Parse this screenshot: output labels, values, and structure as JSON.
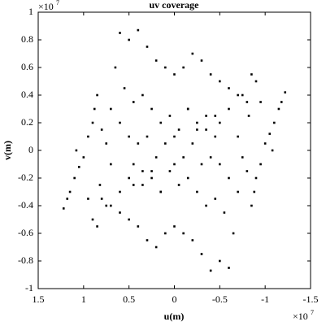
{
  "chart_data": {
    "type": "scatter",
    "title": "uv coverage",
    "xlabel": "u(m)",
    "ylabel": "v(m)",
    "x_scale_base": "×10",
    "x_scale_exponent": "7",
    "y_scale_base": "×10",
    "y_scale_exponent": "7",
    "color": "#000000",
    "xlim": [
      1.5,
      -1.5
    ],
    "xticks": [
      1.5,
      1,
      0.5,
      0,
      -0.5,
      -1,
      -1.5
    ],
    "ylim": [
      -1,
      1
    ],
    "yticks": [
      -1,
      -0.8,
      -0.6,
      -0.4,
      -0.2,
      0,
      0.2,
      0.4,
      0.6,
      0.8,
      1
    ],
    "x": [
      1.22,
      1.18,
      1.15,
      1.1,
      1.05,
      1.0,
      1.08,
      0.95,
      0.9,
      0.88,
      0.85,
      0.8,
      0.75,
      0.7,
      0.82,
      0.9,
      0.85,
      0.6,
      0.5,
      0.4,
      0.3,
      0.2,
      0.1,
      0.0,
      -0.1,
      -0.2,
      -0.3,
      -0.4,
      -0.5,
      -0.6,
      -0.7,
      -0.8,
      0.55,
      0.45,
      0.35,
      0.25,
      0.15,
      0.05,
      -0.05,
      -0.15,
      -0.25,
      -0.35,
      -0.45,
      0.6,
      0.5,
      0.4,
      0.3,
      0.2,
      0.1,
      0.0,
      0.65,
      0.7,
      0.95,
      0.75,
      0.6,
      0.5,
      0.35,
      0.25,
      0.45,
      0.15,
      -1.22,
      -1.18,
      -1.15,
      -1.1,
      -1.05,
      -1.0,
      -1.08,
      -0.95,
      -0.9,
      -0.88,
      -0.85,
      -0.8,
      -0.75,
      -0.7,
      -0.82,
      -0.9,
      -0.85,
      -0.6,
      -0.5,
      -0.4,
      -0.3,
      -0.2,
      -0.1,
      0,
      0.1,
      0.2,
      0.3,
      0.4,
      0.5,
      0.6,
      0.7,
      0.8,
      -0.55,
      -0.45,
      -0.35,
      -0.25,
      -0.15,
      -0.05,
      0.05,
      0.15,
      0.25,
      0.35,
      0.45,
      -0.6,
      -0.5,
      -0.4,
      -0.3,
      -0.2,
      -0.1,
      0,
      -0.65,
      -0.7,
      -0.95,
      -0.75,
      -0.6,
      -0.5,
      -0.35,
      -0.25,
      -0.45,
      -0.15
    ],
    "values": [
      -0.42,
      -0.35,
      -0.3,
      -0.2,
      -0.12,
      -0.05,
      0.0,
      0.1,
      0.2,
      0.3,
      0.4,
      0.15,
      0.05,
      -0.1,
      -0.25,
      -0.5,
      -0.55,
      0.85,
      0.8,
      0.87,
      0.75,
      0.65,
      0.6,
      0.55,
      0.6,
      0.7,
      0.65,
      0.55,
      0.5,
      0.45,
      0.4,
      0.35,
      0.45,
      0.35,
      0.4,
      0.3,
      0.2,
      0.25,
      0.15,
      0.3,
      0.2,
      0.15,
      0.25,
      0.2,
      0.1,
      0.05,
      0.1,
      -0.05,
      0.05,
      -0.1,
      0.6,
      0.3,
      -0.35,
      -0.4,
      -0.3,
      -0.2,
      -0.25,
      -0.15,
      -0.1,
      -0.3,
      0.42,
      0.35,
      0.3,
      0.2,
      0.12,
      0.05,
      0,
      -0.1,
      -0.2,
      -0.3,
      -0.4,
      -0.15,
      -0.05,
      0.1,
      0.25,
      0.5,
      0.55,
      -0.85,
      -0.8,
      -0.87,
      -0.75,
      -0.65,
      -0.6,
      -0.55,
      -0.6,
      -0.7,
      -0.65,
      -0.55,
      -0.5,
      -0.45,
      -0.4,
      -0.35,
      -0.45,
      -0.35,
      -0.4,
      -0.3,
      -0.2,
      -0.25,
      -0.15,
      -0.3,
      -0.2,
      -0.15,
      -0.25,
      -0.2,
      -0.1,
      -0.05,
      -0.1,
      0.05,
      -0.05,
      0.1,
      -0.6,
      -0.3,
      0.35,
      0.4,
      0.3,
      0.2,
      0.25,
      0.15,
      0.1,
      0.3
    ]
  }
}
